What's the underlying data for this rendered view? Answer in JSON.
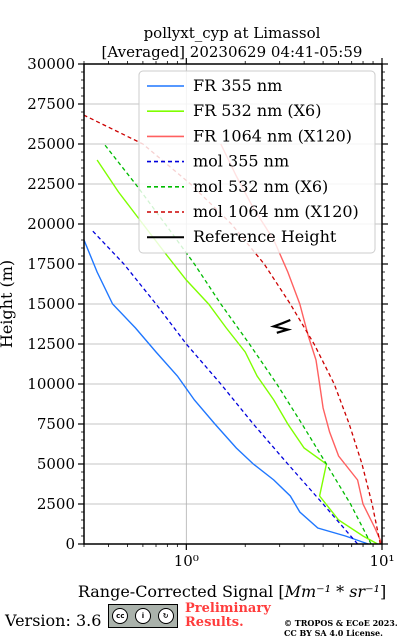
{
  "chart_data": {
    "type": "line",
    "title_line1": "pollyxt_cyp at Limassol",
    "title_line2": "[Averaged] 20230629 04:41-05:59",
    "xlabel": "Range-Corrected Signal [",
    "xlabel_unit": "Mm⁻¹ * sr⁻¹",
    "xlabel_end": "]",
    "ylabel": "Height (m)",
    "xscale": "log",
    "xlim": [
      0.3,
      10
    ],
    "ylim": [
      0,
      30000
    ],
    "yticks": [
      "0",
      "2500",
      "5000",
      "7500",
      "10000",
      "12500",
      "15000",
      "17500",
      "20000",
      "22500",
      "25000",
      "27500",
      "30000"
    ],
    "xticks": [
      "10⁰",
      "10¹"
    ],
    "grid": true,
    "legend_position": "top-right",
    "series": [
      {
        "name": "FR 355 nm",
        "color": "#1f77ff",
        "style": "solid",
        "points": [
          [
            8.5,
            0
          ],
          [
            6.5,
            500
          ],
          [
            4.7,
            1000
          ],
          [
            3.8,
            2000
          ],
          [
            3.4,
            3000
          ],
          [
            2.8,
            4000
          ],
          [
            2.2,
            5000
          ],
          [
            1.8,
            6000
          ],
          [
            1.4,
            7500
          ],
          [
            1.1,
            9000
          ],
          [
            0.9,
            10500
          ],
          [
            0.7,
            12000
          ],
          [
            0.55,
            13500
          ],
          [
            0.42,
            15000
          ],
          [
            0.35,
            17000
          ],
          [
            0.3,
            19000
          ]
        ]
      },
      {
        "name": "FR 532 nm (X6)",
        "color": "#7fff00",
        "style": "solid",
        "points": [
          [
            9.5,
            0
          ],
          [
            8.0,
            500
          ],
          [
            6.0,
            1500
          ],
          [
            4.8,
            3000
          ],
          [
            5.2,
            5000
          ],
          [
            4.0,
            6000
          ],
          [
            3.3,
            7500
          ],
          [
            2.8,
            9000
          ],
          [
            2.3,
            10500
          ],
          [
            2.0,
            12000
          ],
          [
            1.6,
            13500
          ],
          [
            1.3,
            15000
          ],
          [
            1.0,
            16500
          ],
          [
            0.8,
            18000
          ],
          [
            0.6,
            20000
          ],
          [
            0.45,
            22000
          ],
          [
            0.35,
            24000
          ]
        ]
      },
      {
        "name": "FR 1064 nm (X120)",
        "color": "#ff6060",
        "style": "solid",
        "points": [
          [
            10,
            0
          ],
          [
            9.2,
            1000
          ],
          [
            8.0,
            2500
          ],
          [
            7.5,
            4000
          ],
          [
            6.0,
            5500
          ],
          [
            5.4,
            7000
          ],
          [
            5.0,
            8500
          ],
          [
            4.8,
            10000
          ],
          [
            4.6,
            11500
          ],
          [
            4.2,
            13000
          ],
          [
            3.8,
            15000
          ],
          [
            3.3,
            17000
          ],
          [
            2.8,
            19000
          ],
          [
            2.2,
            21000
          ],
          [
            1.8,
            23000
          ],
          [
            1.5,
            25000
          ]
        ]
      },
      {
        "name": "mol 355 nm",
        "color": "#0000dd",
        "style": "dashed",
        "points": [
          [
            7.5,
            0
          ],
          [
            5.0,
            2500
          ],
          [
            3.3,
            5000
          ],
          [
            2.2,
            7500
          ],
          [
            1.5,
            10000
          ],
          [
            1.0,
            12500
          ],
          [
            0.7,
            15000
          ],
          [
            0.48,
            17500
          ],
          [
            0.33,
            19600
          ]
        ]
      },
      {
        "name": "mol 532 nm (X6)",
        "color": "#00bb00",
        "style": "dashed",
        "points": [
          [
            8.8,
            0
          ],
          [
            6.9,
            2500
          ],
          [
            5.2,
            5000
          ],
          [
            3.9,
            7500
          ],
          [
            2.9,
            10000
          ],
          [
            2.1,
            12500
          ],
          [
            1.5,
            15000
          ],
          [
            1.1,
            17500
          ],
          [
            0.78,
            20000
          ],
          [
            0.55,
            22500
          ],
          [
            0.38,
            25000
          ]
        ]
      },
      {
        "name": "mol 1064 nm (X120)",
        "color": "#cc0000",
        "style": "dashed",
        "points": [
          [
            9.8,
            0
          ],
          [
            8.9,
            2500
          ],
          [
            7.9,
            5000
          ],
          [
            6.8,
            7500
          ],
          [
            5.7,
            10000
          ],
          [
            4.5,
            12500
          ],
          [
            3.4,
            15000
          ],
          [
            2.5,
            17500
          ],
          [
            1.7,
            20000
          ],
          [
            1.05,
            22500
          ],
          [
            0.6,
            25000
          ],
          [
            0.3,
            26800
          ]
        ]
      },
      {
        "name": "Reference Height",
        "color": "#000000",
        "style": "solid",
        "points": [
          [
            2.9,
            13200
          ],
          [
            3.3,
            13400
          ],
          [
            2.8,
            13600
          ],
          [
            3.1,
            13800
          ],
          [
            3.4,
            14000
          ]
        ]
      }
    ]
  },
  "footer": {
    "version": "Version: 3.6",
    "cc_label": "CC BY SA",
    "preliminary_line1": "Preliminary",
    "preliminary_line2": "Results.",
    "copyright_line1": "© TROPOS & ECoE 2023.",
    "copyright_line2": "CC BY SA 4.0 License."
  }
}
